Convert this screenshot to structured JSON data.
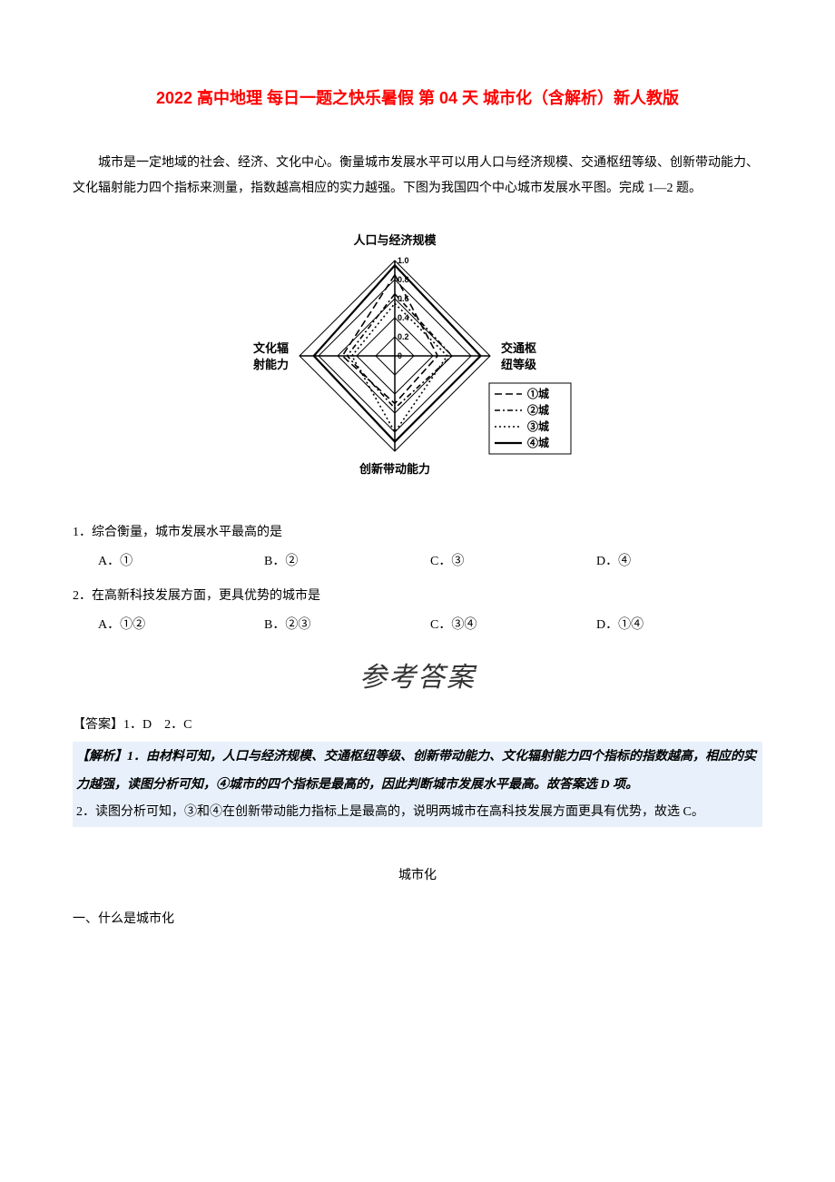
{
  "title": "2022 高中地理 每日一题之快乐暑假 第 04 天 城市化（含解析）新人教版",
  "intro": "城市是一定地域的社会、经济、文化中心。衡量城市发展水平可以用人口与经济规模、交通枢纽等级、创新带动能力、文化辐射能力四个指标来测量，指数越高相应的实力越强。下图为我国四个中心城市发展水平图。完成 1—2 题。",
  "chart": {
    "axes": [
      {
        "label": "人口与经济规模",
        "angle": 90
      },
      {
        "label_lines": [
          "交通枢",
          "纽等级"
        ],
        "angle": 0
      },
      {
        "label": "创新带动能力",
        "angle": 270
      },
      {
        "label_lines": [
          "文化辐",
          "射能力"
        ],
        "angle": 180
      }
    ],
    "ticks": [
      0.2,
      0.4,
      0.6,
      0.8,
      1.0
    ],
    "tick_labels": [
      "0",
      "0.2",
      "0.4",
      "0.6",
      "0.8",
      "1.0"
    ],
    "axis_color": "#000000",
    "grid_color": "#000000",
    "background_color": "#ffffff",
    "label_fontsize": 13,
    "tick_fontsize": 9,
    "series": [
      {
        "name": "①城",
        "values": {
          "up": 0.85,
          "right": 0.45,
          "down": 0.5,
          "left": 0.55
        },
        "dash": "8,4",
        "width": 1.6,
        "color": "#000000"
      },
      {
        "name": "②城",
        "values": {
          "up": 0.65,
          "right": 0.6,
          "down": 0.55,
          "left": 0.5
        },
        "dash": "6,3,2,3",
        "width": 1.6,
        "color": "#000000"
      },
      {
        "name": "③城",
        "values": {
          "up": 0.55,
          "right": 0.55,
          "down": 0.8,
          "left": 0.45
        },
        "dash": "2,3",
        "width": 1.6,
        "color": "#000000"
      },
      {
        "name": "④城",
        "values": {
          "up": 0.95,
          "right": 0.9,
          "down": 0.9,
          "left": 0.85
        },
        "dash": "",
        "width": 2.2,
        "color": "#000000"
      }
    ],
    "legend_swatch_width": 30
  },
  "questions": [
    {
      "stem": "1．综合衡量，城市发展水平最高的是",
      "options": [
        "A．①",
        "B．②",
        "C．③",
        "D．④"
      ]
    },
    {
      "stem": "2．在高新科技发展方面，更具优势的城市是",
      "options": [
        "A．①②",
        "B．②③",
        "C．③④",
        "D．①④"
      ]
    }
  ],
  "answer_banner": "参考答案",
  "answer_line": "【答案】1．D　2．C",
  "explain1": "【解析】1．由材料可知，人口与经济规模、交通枢纽等级、创新带动能力、文化辐射能力四个指标的指数越高，相应的实力越强，读图分析可知，④城市的四个指标是最高的，因此判断城市发展水平最高。故答案选 D 项。",
  "explain2": "2．读图分析可知，③和④在创新带动能力指标上是最高的，说明两城市在高科技发展方面更具有优势，故选 C。",
  "section_center": "城市化",
  "section_sub": "一、什么是城市化"
}
